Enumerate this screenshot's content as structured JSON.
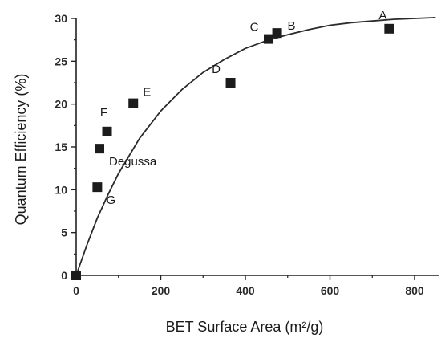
{
  "chart_data": {
    "type": "scatter",
    "title": "",
    "xlabel": "BET Surface Area (m²/g)",
    "ylabel": "Quantum Efficiency (%)",
    "xlim": [
      0,
      800
    ],
    "ylim": [
      0,
      30
    ],
    "xticks": [
      0,
      200,
      400,
      600,
      800
    ],
    "yticks": [
      0,
      5,
      10,
      15,
      20,
      25,
      30
    ],
    "grid": false,
    "legend": "none",
    "marker_color": "#1c1c1c",
    "curve_color": "#2b2b2b",
    "points": [
      {
        "label": "",
        "x": 0,
        "y": 0
      },
      {
        "label": "G",
        "x": 50,
        "y": 10.3
      },
      {
        "label": "Degussa",
        "x": 55,
        "y": 14.8
      },
      {
        "label": "F",
        "x": 73,
        "y": 16.8
      },
      {
        "label": "E",
        "x": 135,
        "y": 20.1
      },
      {
        "label": "D",
        "x": 365,
        "y": 22.5
      },
      {
        "label": "C",
        "x": 455,
        "y": 27.6
      },
      {
        "label": "B",
        "x": 475,
        "y": 28.3
      },
      {
        "label": "A",
        "x": 740,
        "y": 28.8
      }
    ],
    "fit_curve": {
      "type": "exponential-saturation",
      "x": [
        0,
        25,
        50,
        75,
        100,
        150,
        200,
        250,
        300,
        350,
        400,
        450,
        500,
        550,
        600,
        650,
        700,
        750,
        800,
        850
      ],
      "y": [
        0,
        3.5,
        6.7,
        9.4,
        11.9,
        16.0,
        19.2,
        21.7,
        23.7,
        25.2,
        26.5,
        27.4,
        28.1,
        28.7,
        29.2,
        29.5,
        29.7,
        29.9,
        30.0,
        30.1
      ]
    }
  }
}
